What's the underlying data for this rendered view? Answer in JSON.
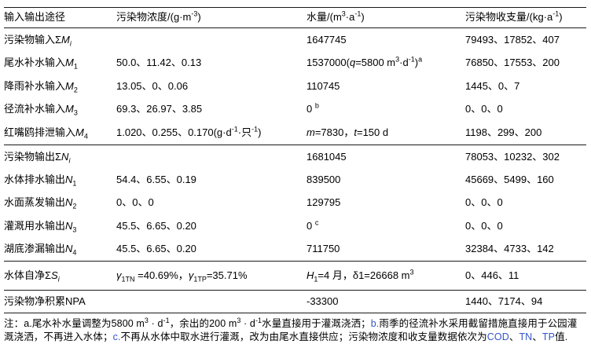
{
  "colors": {
    "accent_blue": "#3355cc",
    "text": "#000000",
    "rule": "#1a1a1a",
    "background": "#ffffff"
  },
  "table": {
    "columns": [
      "输入输出途径",
      "污染物浓度/(g·m^{-3})",
      "水量/(m^{3}·a^{-1})",
      "污染物收支量/(kg·a^{-1})"
    ],
    "rows": [
      {
        "cells": [
          "污染物输入Σ*M*_{*i*}",
          "",
          "1647745",
          "79493、17852、407"
        ]
      },
      {
        "cells": [
          "尾水补水输入*M*_{1}",
          "50.0、11.42、0.13",
          "1537000(*q*=5800 m^{3}·d^{-1})^{a}",
          "76850、17553、200"
        ]
      },
      {
        "cells": [
          "降雨补水输入*M*_{2}",
          "13.05、0、0.06",
          "110745",
          "1445、0、7"
        ]
      },
      {
        "cells": [
          "径流补水输入*M*_{3}",
          "69.3、26.97、3.85",
          "0 ^{b}",
          "0、0、0"
        ]
      },
      {
        "cells": [
          "红嘴鸥排泄输入*M*_{4}",
          "1.020、0.255、0.170(g·d^{-1}·只^{-1})",
          "*m*=7830，*t*=150 d",
          "1198、299、200"
        ]
      },
      {
        "cells": [
          "污染物输出Σ*N*_{*i*}",
          "",
          "1681045",
          "78053、10232、302"
        ]
      },
      {
        "cells": [
          "水体排水输出*N*_{1}",
          "54.4、6.55、0.19",
          "839500",
          "45669、5499、160"
        ]
      },
      {
        "cells": [
          "水面蒸发输出*N*_{2}",
          "0、0、0",
          "129795",
          "0、0、0"
        ]
      },
      {
        "cells": [
          "灌溉用水输出*N*_{3}",
          "45.5、6.65、0.20",
          "0 ^{c}",
          "0、0、0"
        ]
      },
      {
        "cells": [
          "湖底渗漏输出*N*_{4}",
          "45.5、6.65、0.20",
          "711750",
          "32384、4733、142"
        ]
      },
      {
        "cells": [
          "水体自净Σ*S*_{*i*}",
          "*γ*_{1TN} =40.69%，*γ*_{1TP}=35.71%",
          "*H*_{1}=4 月，δ1=26668 m^{3}",
          "0、446、11"
        ]
      },
      {
        "cells": [
          "污染物净积累NPA",
          "",
          "-33300",
          "1440、7174、94"
        ]
      }
    ]
  },
  "footnote": "注：a.尾水补水量调整为5800 m^{3} · d^{-1}，余出的200 m^{3} · d^{-1}水量直接用于灌溉浇洒；[[b.]]雨季的径流补水采用截留措施直接用于公园灌溉浇洒，不再进入水体；[[c.]]不再从水体中取水进行灌溉，改为由尾水直接供应；污染物浓度和收支量数据依次为[[COD]]、[[TN]]、[[TP]]值."
}
